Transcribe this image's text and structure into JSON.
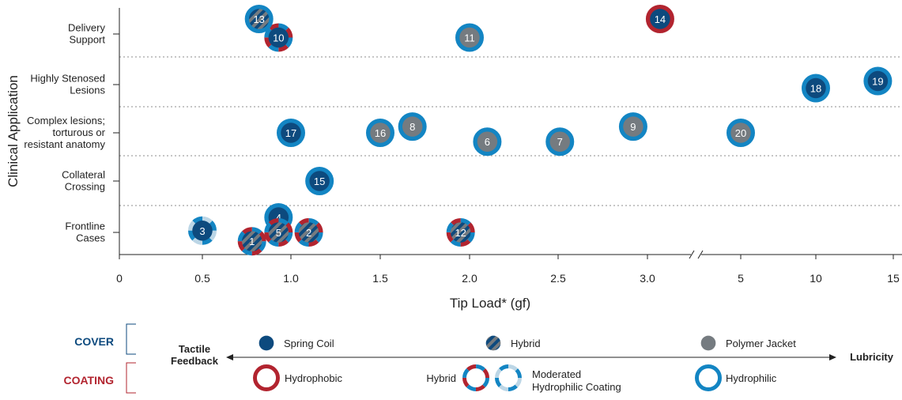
{
  "chart_data": {
    "type": "scatter",
    "title": "",
    "xlabel": "Tip Load* (gf)",
    "ylabel": "Clinical Application",
    "x_tick_labels": [
      "0",
      "0.5",
      "1.0",
      "1.5",
      "2.0",
      "2.5",
      "3.0",
      "5",
      "10",
      "15"
    ],
    "x_axis_note": "broken axis: linear 0–3.0 then 5, 10, 15",
    "categories": [
      "Frontline Cases",
      "Collateral Crossing",
      "Complex lesions; torturous or resistant anatomy",
      "Highly Stenosed Lesions",
      "Delivery Support"
    ],
    "category_display": [
      [
        "Frontline",
        "Cases"
      ],
      [
        "Collateral",
        "Crossing"
      ],
      [
        "Complex lesions;",
        "torturous or",
        "resistant anatomy"
      ],
      [
        "Highly Stenosed",
        "Lesions"
      ],
      [
        "Delivery",
        "Support"
      ]
    ],
    "points": [
      {
        "id": "1",
        "x": 0.78,
        "category": "Frontline Cases",
        "offset": -0.5,
        "cover": "hybrid",
        "coating": "hybrid"
      },
      {
        "id": "2",
        "x": 1.1,
        "category": "Frontline Cases",
        "offset": 0,
        "cover": "hybrid",
        "coating": "hybrid"
      },
      {
        "id": "3",
        "x": 0.5,
        "category": "Frontline Cases",
        "offset": 0.1,
        "cover": "spring-coil",
        "coating": "moderated-hydrophilic"
      },
      {
        "id": "4",
        "x": 0.93,
        "category": "Frontline Cases",
        "offset": 0.85,
        "cover": "spring-coil",
        "coating": "hydrophilic"
      },
      {
        "id": "5",
        "x": 0.93,
        "category": "Frontline Cases",
        "offset": 0,
        "cover": "hybrid",
        "coating": "hybrid"
      },
      {
        "id": "6",
        "x": 2.1,
        "category": "Complex lesions; torturous or resistant anatomy",
        "offset": -0.5,
        "cover": "polymer-jacket",
        "coating": "hydrophilic"
      },
      {
        "id": "7",
        "x": 2.51,
        "category": "Complex lesions; torturous or resistant anatomy",
        "offset": -0.5,
        "cover": "polymer-jacket",
        "coating": "hydrophilic"
      },
      {
        "id": "8",
        "x": 1.68,
        "category": "Complex lesions; torturous or resistant anatomy",
        "offset": 0.35,
        "cover": "polymer-jacket",
        "coating": "hydrophilic"
      },
      {
        "id": "9",
        "x": 2.92,
        "category": "Complex lesions; torturous or resistant anatomy",
        "offset": 0.35,
        "cover": "polymer-jacket",
        "coating": "hydrophilic"
      },
      {
        "id": "10",
        "x": 0.93,
        "category": "Delivery Support",
        "offset": -0.2,
        "cover": "spring-coil",
        "coating": "hybrid"
      },
      {
        "id": "11",
        "x": 2.0,
        "category": "Delivery Support",
        "offset": -0.2,
        "cover": "polymer-jacket",
        "coating": "hydrophilic"
      },
      {
        "id": "12",
        "x": 1.95,
        "category": "Frontline Cases",
        "offset": 0,
        "cover": "hybrid",
        "coating": "hybrid"
      },
      {
        "id": "13",
        "x": 0.82,
        "category": "Delivery Support",
        "offset": 0.85,
        "cover": "hybrid",
        "coating": "hydrophilic"
      },
      {
        "id": "14",
        "x": 3.27,
        "category": "Delivery Support",
        "offset": 0.85,
        "cover": "spring-coil",
        "coating": "hydrophobic"
      },
      {
        "id": "15",
        "x": 1.16,
        "category": "Collateral Crossing",
        "offset": 0,
        "cover": "spring-coil",
        "coating": "hydrophilic"
      },
      {
        "id": "16",
        "x": 1.5,
        "category": "Complex lesions; torturous or resistant anatomy",
        "offset": 0,
        "cover": "polymer-jacket",
        "coating": "hydrophilic"
      },
      {
        "id": "17",
        "x": 1.0,
        "category": "Complex lesions; torturous or resistant anatomy",
        "offset": 0,
        "cover": "spring-coil",
        "coating": "hydrophilic"
      },
      {
        "id": "18",
        "x": 10,
        "category": "Highly Stenosed Lesions",
        "offset": -0.2,
        "cover": "spring-coil",
        "coating": "hydrophilic"
      },
      {
        "id": "19",
        "x": 14,
        "category": "Highly Stenosed Lesions",
        "offset": 0.2,
        "cover": "spring-coil",
        "coating": "hydrophilic"
      },
      {
        "id": "20",
        "x": 5,
        "category": "Complex lesions; torturous or resistant anatomy",
        "offset": 0,
        "cover": "polymer-jacket",
        "coating": "hydrophilic"
      }
    ],
    "grid": "dotted separators between categories"
  },
  "legend": {
    "cover_label": "COVER",
    "coating_label": "COATING",
    "left_end": [
      "Tactile",
      "Feedback"
    ],
    "right_end": "Lubricity",
    "cover_items": [
      {
        "key": "spring-coil",
        "label": "Spring Coil"
      },
      {
        "key": "hybrid",
        "label": "Hybrid"
      },
      {
        "key": "polymer-jacket",
        "label": "Polymer Jacket"
      }
    ],
    "coating_items": [
      {
        "key": "hydrophobic",
        "label": "Hydrophobic"
      },
      {
        "key": "hybrid",
        "label_left": "Hybrid"
      },
      {
        "key": "moderated-hydrophilic",
        "label": [
          "Moderated",
          "Hydrophilic Coating"
        ]
      },
      {
        "key": "hydrophilic",
        "label": "Hydrophilic"
      }
    ]
  },
  "colors": {
    "navy": "#0d4a7e",
    "gray": "#757b80",
    "blue_ring": "#1385c3",
    "red_ring": "#b2242f",
    "light_ring": "#bcd6e6",
    "cover_title": "#0d4a7e",
    "coating_title": "#b2242f",
    "axis": "#222222",
    "grid": "#8c8c8c"
  }
}
